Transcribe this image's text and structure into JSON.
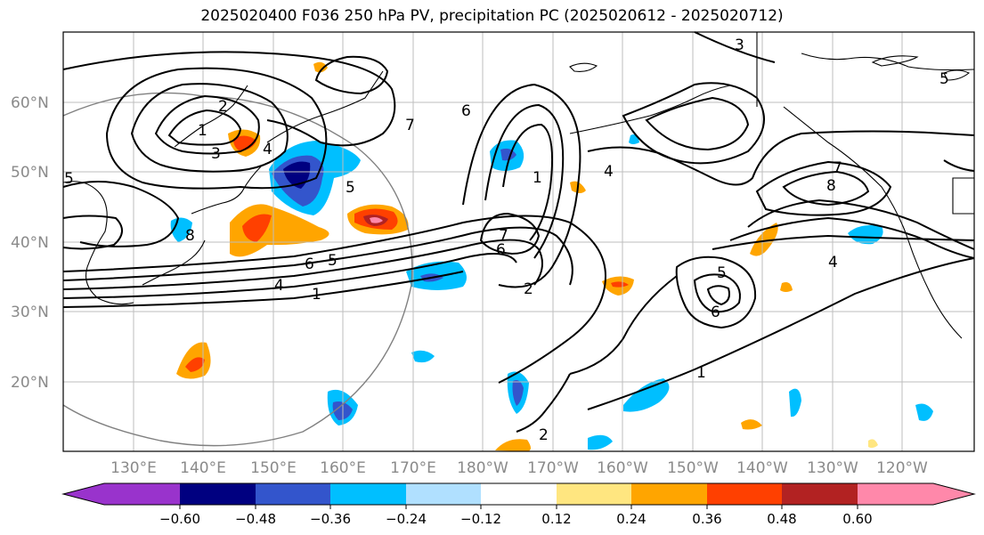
{
  "title": "2025020400 F036 250 hPa PV, precipitation PC (2025020612 - 2025020712)",
  "map": {
    "lat_labels": [
      "60°N",
      "50°N",
      "40°N",
      "30°N",
      "20°N"
    ],
    "lon_labels": [
      "130°E",
      "140°E",
      "150°E",
      "160°E",
      "170°E",
      "180°W",
      "170°W",
      "160°W",
      "150°W",
      "140°W",
      "130°W",
      "120°W"
    ],
    "contour_labels": [
      {
        "text": "2"
      },
      {
        "text": "1"
      },
      {
        "text": "3"
      },
      {
        "text": "4"
      },
      {
        "text": "5"
      },
      {
        "text": "8"
      },
      {
        "text": "6"
      },
      {
        "text": "7"
      },
      {
        "text": "6"
      },
      {
        "text": "1"
      },
      {
        "text": "4"
      },
      {
        "text": "2"
      },
      {
        "text": "3"
      },
      {
        "text": "5"
      },
      {
        "text": "5"
      },
      {
        "text": "8"
      },
      {
        "text": "7"
      },
      {
        "text": "4"
      },
      {
        "text": "5"
      },
      {
        "text": "6"
      },
      {
        "text": "1"
      },
      {
        "text": "2"
      },
      {
        "text": "1"
      },
      {
        "text": "6"
      },
      {
        "text": "4"
      },
      {
        "text": "5"
      },
      {
        "text": "7"
      }
    ]
  },
  "colorbar": {
    "ticks": [
      "−0.60",
      "−0.48",
      "−0.36",
      "−0.24",
      "−0.12",
      "0.12",
      "0.24",
      "0.36",
      "0.48",
      "0.60"
    ],
    "colors": [
      "#9933cc",
      "#000080",
      "#3355cc",
      "#00bfff",
      "#b0e0ff",
      "#ffffff",
      "#ffe680",
      "#ffa500",
      "#ff4000",
      "#b22222",
      "#ff88aa"
    ]
  }
}
